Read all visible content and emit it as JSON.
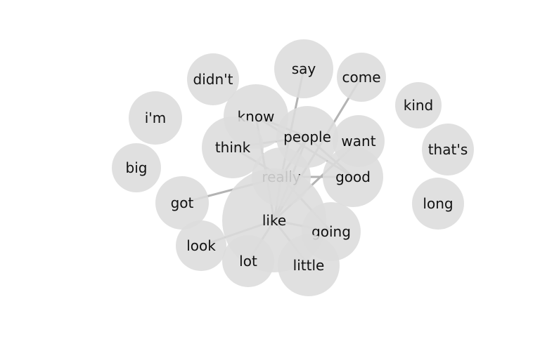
{
  "graph": {
    "nodes": [
      {
        "id": "didnt",
        "label": "didn't"
      },
      {
        "id": "say",
        "label": "say"
      },
      {
        "id": "come",
        "label": "come"
      },
      {
        "id": "kind",
        "label": "kind"
      },
      {
        "id": "im",
        "label": "i'm"
      },
      {
        "id": "know",
        "label": "know"
      },
      {
        "id": "people",
        "label": "people"
      },
      {
        "id": "want",
        "label": "want"
      },
      {
        "id": "thats",
        "label": "that's"
      },
      {
        "id": "think",
        "label": "think"
      },
      {
        "id": "big",
        "label": "big"
      },
      {
        "id": "really",
        "label": "really"
      },
      {
        "id": "good",
        "label": "good"
      },
      {
        "id": "got",
        "label": "got"
      },
      {
        "id": "long",
        "label": "long"
      },
      {
        "id": "like",
        "label": "like"
      },
      {
        "id": "going",
        "label": "going"
      },
      {
        "id": "look",
        "label": "look"
      },
      {
        "id": "lot",
        "label": "lot"
      },
      {
        "id": "little",
        "label": "little"
      }
    ],
    "edges": [
      [
        "like",
        "really"
      ],
      [
        "like",
        "people"
      ],
      [
        "like",
        "know"
      ],
      [
        "like",
        "come"
      ],
      [
        "like",
        "want"
      ],
      [
        "like",
        "look"
      ],
      [
        "like",
        "lot"
      ],
      [
        "like",
        "going"
      ],
      [
        "like",
        "little"
      ],
      [
        "really",
        "think"
      ],
      [
        "really",
        "people"
      ],
      [
        "really",
        "say"
      ],
      [
        "really",
        "got"
      ],
      [
        "really",
        "good"
      ],
      [
        "really",
        "going"
      ],
      [
        "people",
        "think"
      ],
      [
        "people",
        "know"
      ],
      [
        "people",
        "good"
      ],
      [
        "know",
        "good"
      ]
    ]
  }
}
